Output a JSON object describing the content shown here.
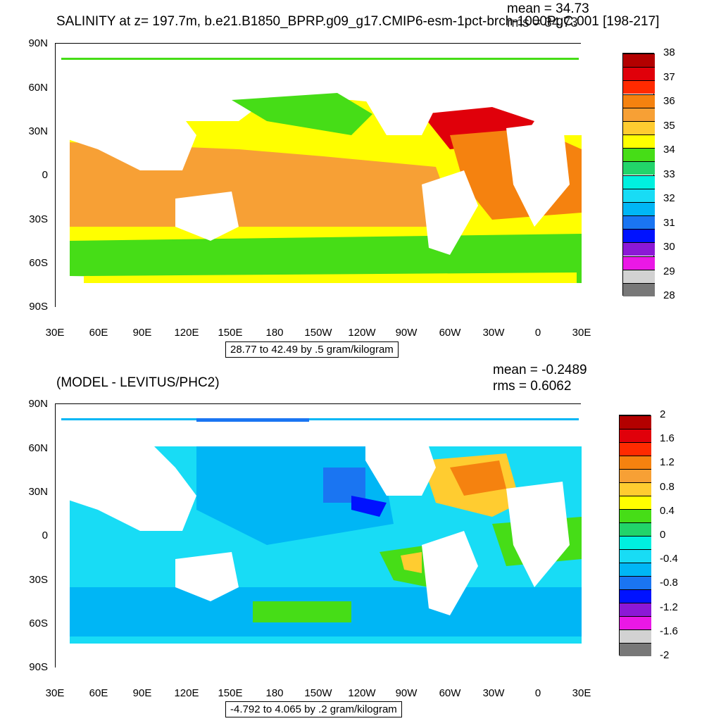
{
  "panels": [
    {
      "title": "SALINITY at z= 197.7m, b.e21.B1850_BPRP.g09_g17.CMIP6-esm-1pct-brch-1000PgC.001 [198-217]",
      "mean": "mean = 34.73",
      "rms": "rms = 34.73",
      "info": "28.77 to 42.49 by .5 gram/kilogram",
      "lat_ticks": [
        "90N",
        "60N",
        "30N",
        "0",
        "30S",
        "60S",
        "90S"
      ],
      "lon_ticks": [
        "30E",
        "60E",
        "90E",
        "120E",
        "150E",
        "180",
        "150W",
        "120W",
        "90W",
        "60W",
        "30W",
        "0",
        "30E"
      ],
      "colorbar_labels": [
        "38",
        "37",
        "36",
        "35",
        "34",
        "33",
        "32",
        "31",
        "30",
        "29",
        "28"
      ],
      "colorbar_colors": [
        "#b30000",
        "#e0000a",
        "#ff2a00",
        "#f5820f",
        "#f7a035",
        "#ffcc30",
        "#ffff00",
        "#46dd17",
        "#22d46a",
        "#00f0e0",
        "#18dcf5",
        "#00b6f5",
        "#1a75f2",
        "#0012ff",
        "#8c18d6",
        "#ea18e6",
        "#d2d2d2",
        "#787878"
      ]
    },
    {
      "title": "(MODEL - LEVITUS/PHC2)",
      "mean": "mean = -0.2489",
      "rms": "rms = 0.6062",
      "info": "-4.792 to 4.065 by .2 gram/kilogram",
      "lat_ticks": [
        "90N",
        "60N",
        "30N",
        "0",
        "30S",
        "60S",
        "90S"
      ],
      "lon_ticks": [
        "30E",
        "60E",
        "90E",
        "120E",
        "150E",
        "180",
        "150W",
        "120W",
        "90W",
        "60W",
        "30W",
        "0",
        "30E"
      ],
      "colorbar_labels": [
        "2",
        "1.6",
        "1.2",
        "0.8",
        "0.4",
        "0",
        "-0.4",
        "-0.8",
        "-1.2",
        "-1.6",
        "-2"
      ],
      "colorbar_colors": [
        "#b30000",
        "#e0000a",
        "#ff2a00",
        "#f5820f",
        "#f7a035",
        "#ffcc30",
        "#ffff00",
        "#46dd17",
        "#22d46a",
        "#00f0e0",
        "#18dcf5",
        "#00b6f5",
        "#1a75f2",
        "#0012ff",
        "#8c18d6",
        "#ea18e6",
        "#d2d2d2",
        "#787878"
      ]
    }
  ],
  "colors": {
    "ocean_panel1": "#ffcc30",
    "ocean_panel2": "#18dcf5",
    "land": "#ffffff"
  }
}
